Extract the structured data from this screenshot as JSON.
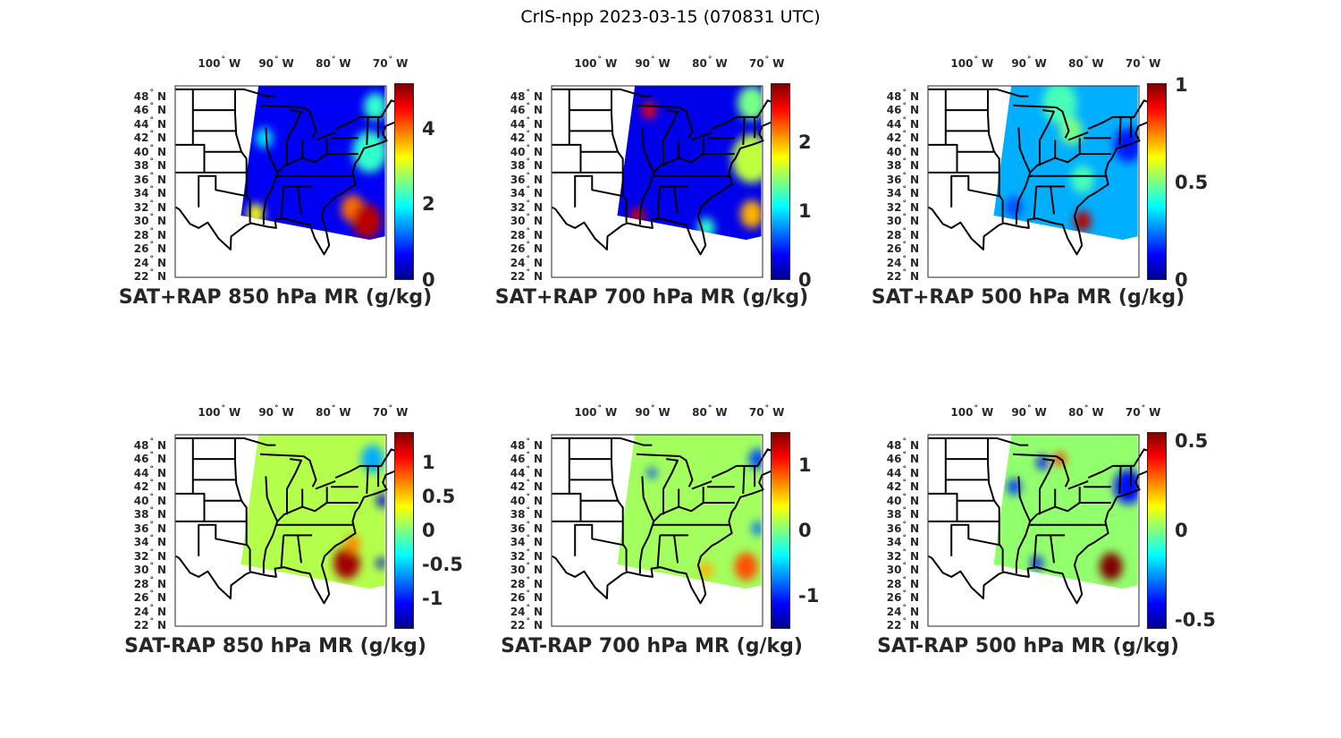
{
  "title": "CrIS-npp 2023-03-15 (070831 UTC)",
  "chart_data": [
    {
      "type": "heatmap",
      "title": "SAT+RAP 850 hPa MR (g/kg)",
      "clim": [
        0,
        5.2
      ],
      "cbar_ticks": [
        "0",
        "2",
        "4"
      ],
      "cbar_tick_values": [
        0,
        2,
        4
      ],
      "lon_ticks": [
        "100",
        "90",
        "80",
        "70"
      ],
      "lat_ticks": [
        "48",
        "46",
        "44",
        "42",
        "40",
        "38",
        "36",
        "34",
        "32",
        "30",
        "28",
        "26",
        "24",
        "22"
      ],
      "base_value": 0.6,
      "features": [
        [
          -73,
          40,
          2.2,
          3
        ],
        [
          -72,
          46.5,
          2.2,
          2
        ],
        [
          -91.5,
          42,
          1.8,
          1.5
        ],
        [
          -93,
          31,
          3.2,
          1.5
        ],
        [
          -76,
          31.8,
          4,
          2
        ],
        [
          -73.5,
          30,
          4.9,
          2.5
        ]
      ]
    },
    {
      "type": "heatmap",
      "title": "SAT+RAP 700 hPa MR (g/kg)",
      "clim": [
        0,
        2.85
      ],
      "cbar_ticks": [
        "0",
        "1",
        "2"
      ],
      "cbar_tick_values": [
        0,
        1,
        2
      ],
      "lon_ticks": [
        "100",
        "90",
        "80",
        "70"
      ],
      "lat_ticks": [
        "48",
        "46",
        "44",
        "42",
        "40",
        "38",
        "36",
        "34",
        "32",
        "30",
        "28",
        "26",
        "24",
        "22"
      ],
      "base_value": 0.3,
      "features": [
        [
          -72,
          39,
          1.6,
          3.5
        ],
        [
          -72,
          47,
          1.4,
          2.5
        ],
        [
          -90,
          46,
          2.5,
          1.2
        ],
        [
          -92,
          30.8,
          2.6,
          1.2
        ],
        [
          -72,
          31,
          2,
          2
        ],
        [
          -80,
          29,
          1.2,
          1.5
        ]
      ]
    },
    {
      "type": "heatmap",
      "title": "SAT+RAP 500 hPa MR (g/kg)",
      "clim": [
        0,
        1.01
      ],
      "cbar_ticks": [
        "0",
        "0.5",
        "1"
      ],
      "cbar_tick_values": [
        0,
        0.5,
        1
      ],
      "lon_ticks": [
        "100",
        "90",
        "80",
        "70"
      ],
      "lat_ticks": [
        "48",
        "46",
        "44",
        "42",
        "40",
        "38",
        "36",
        "34",
        "32",
        "30",
        "28",
        "26",
        "24",
        "22"
      ],
      "base_value": 0.3,
      "features": [
        [
          -84,
          47,
          0.45,
          3
        ],
        [
          -82,
          43,
          0.5,
          2
        ],
        [
          -80,
          36,
          0.45,
          2
        ],
        [
          -72,
          41,
          0.15,
          2.5
        ],
        [
          -80,
          30,
          0.95,
          1.5
        ],
        [
          -92,
          32,
          0.2,
          1.5
        ]
      ]
    },
    {
      "type": "heatmap",
      "title": "SAT-RAP 850 hPa MR (g/kg)",
      "clim": [
        -1.45,
        1.45
      ],
      "cbar_ticks": [
        "1",
        "0.5",
        "0",
        "-0.5",
        "-1"
      ],
      "cbar_tick_values": [
        1,
        0.5,
        0,
        -0.5,
        -1
      ],
      "lon_ticks": [
        "100",
        "90",
        "80",
        "70"
      ],
      "lat_ticks": [
        "48",
        "46",
        "44",
        "42",
        "40",
        "38",
        "36",
        "34",
        "32",
        "30",
        "28",
        "26",
        "24",
        "22"
      ],
      "base_value": 0.15,
      "features": [
        [
          -77,
          31,
          1.35,
          2.3
        ],
        [
          -76,
          33.8,
          0.7,
          1.3
        ],
        [
          -72.5,
          46,
          -0.6,
          2
        ],
        [
          -70.8,
          40,
          -1.2,
          1
        ],
        [
          -71,
          31,
          -1.2,
          0.8
        ]
      ]
    },
    {
      "type": "heatmap",
      "title": "SAT-RAP 700 hPa MR (g/kg)",
      "clim": [
        -1.5,
        1.5
      ],
      "cbar_ticks": [
        "1",
        "0",
        "-1"
      ],
      "cbar_tick_values": [
        1,
        0,
        -1
      ],
      "lon_ticks": [
        "100",
        "90",
        "80",
        "70"
      ],
      "lat_ticks": [
        "48",
        "46",
        "44",
        "42",
        "40",
        "38",
        "36",
        "34",
        "32",
        "30",
        "28",
        "26",
        "24",
        "22"
      ],
      "base_value": 0.1,
      "features": [
        [
          -73,
          30.5,
          0.9,
          2
        ],
        [
          -71,
          36,
          -0.8,
          1
        ],
        [
          -71,
          46,
          -0.9,
          1.5
        ],
        [
          -89.5,
          44,
          -0.9,
          0.8
        ],
        [
          -80,
          30,
          0.6,
          1.2
        ]
      ]
    },
    {
      "type": "heatmap",
      "title": "SAT-RAP 500 hPa MR (g/kg)",
      "clim": [
        -0.55,
        0.55
      ],
      "cbar_ticks": [
        "0.5",
        "0",
        "-0.5"
      ],
      "cbar_tick_values": [
        0.5,
        0,
        -0.5
      ],
      "lon_ticks": [
        "100",
        "90",
        "80",
        "70"
      ],
      "lat_ticks": [
        "48",
        "46",
        "44",
        "42",
        "40",
        "38",
        "36",
        "34",
        "32",
        "30",
        "28",
        "26",
        "24",
        "22"
      ],
      "base_value": 0.02,
      "features": [
        [
          -75,
          30.5,
          0.55,
          2
        ],
        [
          -72,
          42,
          -0.4,
          2.5
        ],
        [
          -92,
          42,
          -0.35,
          1.2
        ],
        [
          -84,
          46,
          0.35,
          1
        ],
        [
          -87,
          45.5,
          -0.4,
          1
        ],
        [
          -88,
          31,
          -0.4,
          1
        ]
      ]
    }
  ],
  "degree_symbol": "°",
  "west": "W",
  "north": "N"
}
